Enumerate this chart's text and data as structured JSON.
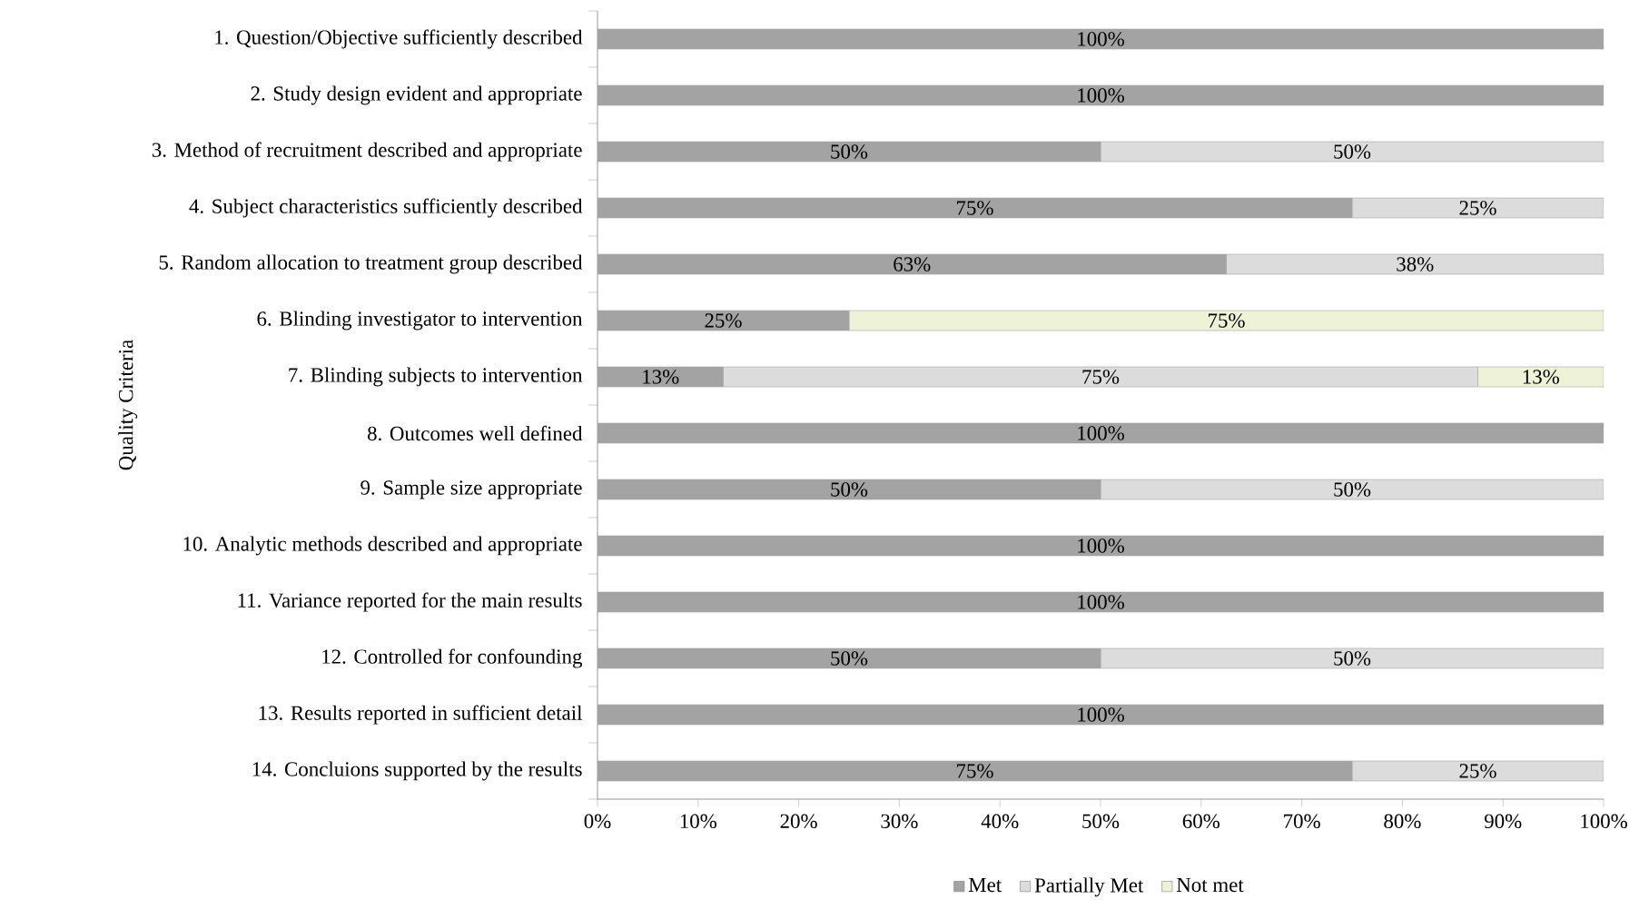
{
  "chart_data": {
    "type": "bar",
    "orientation": "horizontal",
    "stacked": true,
    "ylabel": "Quality Criteria",
    "categories": [
      "1. Question/Objective sufficiently described",
      "2. Study design evident and appropriate",
      "3. Method of recruitment described and appropriate",
      "4. Subject characteristics sufficiently described",
      "5. Random allocation to treatment group described",
      "6. Blinding investigator to intervention",
      "7. Blinding subjects to intervention",
      "8. Outcomes well defined",
      "9. Sample size appropriate",
      "10. Analytic methods described and appropriate",
      "11. Variance reported for the main results",
      "12. Controlled for confounding",
      "13. Results reported in sufficient detail",
      "14. Concluions supported by the results"
    ],
    "series": [
      {
        "name": "Met",
        "color": "#a3a3a3",
        "values": [
          100,
          100,
          50,
          75,
          62.5,
          25,
          12.5,
          100,
          50,
          100,
          100,
          50,
          100,
          75
        ],
        "value_labels": [
          "100%",
          "100%",
          "50%",
          "75%",
          "63%",
          "25%",
          "13%",
          "100%",
          "50%",
          "100%",
          "100%",
          "50%",
          "100%",
          "75%"
        ]
      },
      {
        "name": "Partially Met",
        "color": "#dcdcdc",
        "values": [
          0,
          0,
          50,
          25,
          37.5,
          0,
          75,
          0,
          50,
          0,
          0,
          50,
          0,
          25
        ],
        "value_labels": [
          null,
          null,
          "50%",
          "25%",
          "38%",
          null,
          "75%",
          null,
          "50%",
          null,
          null,
          "50%",
          null,
          "25%"
        ]
      },
      {
        "name": "Not met",
        "color": "#eef2d6",
        "values": [
          0,
          0,
          0,
          0,
          0,
          75,
          12.5,
          0,
          0,
          0,
          0,
          0,
          0,
          0
        ],
        "value_labels": [
          null,
          null,
          null,
          null,
          null,
          "75%",
          "13%",
          null,
          null,
          null,
          null,
          null,
          null,
          null
        ]
      }
    ],
    "xlim": [
      0,
      100
    ],
    "xticks": [
      {
        "value": 0,
        "label": "0%"
      },
      {
        "value": 10,
        "label": "10%"
      },
      {
        "value": 20,
        "label": "20%"
      },
      {
        "value": 30,
        "label": "30%"
      },
      {
        "value": 40,
        "label": "40%"
      },
      {
        "value": 50,
        "label": "50%"
      },
      {
        "value": 60,
        "label": "60%"
      },
      {
        "value": 70,
        "label": "70%"
      },
      {
        "value": 80,
        "label": "80%"
      },
      {
        "value": 90,
        "label": "90%"
      },
      {
        "value": 100,
        "label": "100%"
      }
    ],
    "grid": false,
    "legend": "bottom"
  }
}
